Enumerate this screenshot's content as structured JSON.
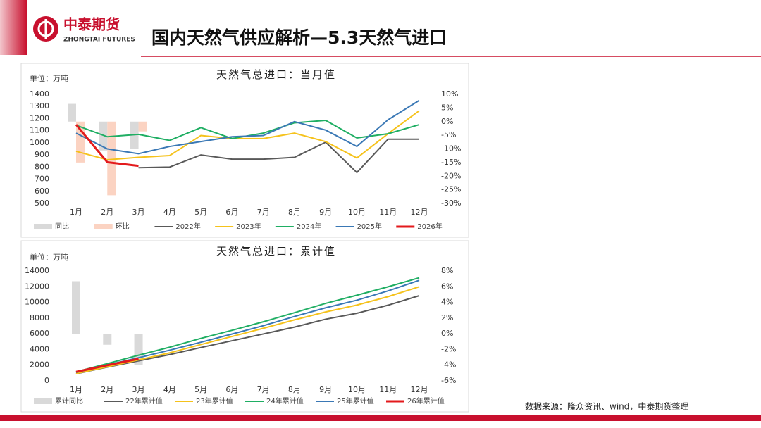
{
  "header": {
    "logo_cn": "中泰期货",
    "logo_en": "ZHONGTAI FUTURES",
    "title": "国内天然气供应解析—5.3天然气进口"
  },
  "source": "数据来源：隆众资讯、wind，中泰期货整理",
  "chart_data": [
    {
      "type": "combo",
      "title": "天然气总进口：当月值",
      "unit": "单位：万吨",
      "categories": [
        "1月",
        "2月",
        "3月",
        "4月",
        "5月",
        "6月",
        "7月",
        "8月",
        "9月",
        "10月",
        "11月",
        "12月"
      ],
      "ylim": [
        500,
        1400
      ],
      "yticks": [
        500,
        600,
        700,
        800,
        900,
        1000,
        1100,
        1200,
        1300,
        1400
      ],
      "y2lim": [
        -30,
        10
      ],
      "y2ticks": [
        {
          "value": -30,
          "label": "-30%"
        },
        {
          "value": -25,
          "label": "-25%"
        },
        {
          "value": -20,
          "label": "-20%"
        },
        {
          "value": -15,
          "label": "-15%"
        },
        {
          "value": -10,
          "label": "-10%"
        },
        {
          "value": -5,
          "label": "-5%"
        },
        {
          "value": 0,
          "label": "0%"
        },
        {
          "value": 5,
          "label": "5%"
        },
        {
          "value": 10,
          "label": "10%"
        }
      ],
      "series": [
        {
          "name": "同比",
          "type": "bar",
          "axis": "y2",
          "color": "#d9d9d9",
          "values": [
            6.5,
            -10.6,
            -10,
            null,
            null,
            null,
            null,
            null,
            null,
            null,
            null,
            null
          ]
        },
        {
          "name": "环比",
          "type": "bar",
          "axis": "y2",
          "color": "#fbd3c2",
          "values": [
            -15,
            -27,
            -3.6,
            null,
            null,
            null,
            null,
            null,
            null,
            null,
            null,
            null
          ]
        },
        {
          "name": "2022年",
          "type": "line",
          "color": "#595959",
          "values": [
            null,
            null,
            795,
            800,
            900,
            865,
            865,
            880,
            1005,
            755,
            1030,
            1030
          ]
        },
        {
          "name": "2023年",
          "type": "line",
          "color": "#f5c21b",
          "values": [
            930,
            860,
            880,
            895,
            1060,
            1035,
            1035,
            1080,
            1010,
            875,
            1075,
            1265
          ]
        },
        {
          "name": "2024年",
          "type": "line",
          "color": "#1fae63",
          "values": [
            1145,
            1050,
            1070,
            1020,
            1125,
            1035,
            1080,
            1165,
            1185,
            1040,
            1075,
            1150
          ]
        },
        {
          "name": "2025年",
          "type": "line",
          "color": "#3a78b5",
          "values": [
            1080,
            950,
            910,
            970,
            1010,
            1050,
            1060,
            1175,
            1105,
            970,
            1190,
            1350
          ]
        },
        {
          "name": "2026年",
          "type": "line",
          "color": "#e31a1c",
          "width": 3,
          "values": [
            1150,
            840,
            810,
            null,
            null,
            null,
            null,
            null,
            null,
            null,
            null,
            null
          ]
        }
      ]
    },
    {
      "type": "combo",
      "title": "天然气总进口：累计值",
      "unit": "单位：万吨",
      "categories": [
        "1月",
        "2月",
        "3月",
        "4月",
        "5月",
        "6月",
        "7月",
        "8月",
        "9月",
        "10月",
        "11月",
        "12月"
      ],
      "ylim": [
        0,
        14000
      ],
      "yticks": [
        0,
        2000,
        4000,
        6000,
        8000,
        10000,
        12000,
        14000
      ],
      "y2lim": [
        -6,
        8
      ],
      "y2ticks": [
        {
          "value": -6,
          "label": "-6%"
        },
        {
          "value": -4,
          "label": "-4%"
        },
        {
          "value": -2,
          "label": "-2%"
        },
        {
          "value": 0,
          "label": "0%"
        },
        {
          "value": 2,
          "label": "2%"
        },
        {
          "value": 4,
          "label": "4%"
        },
        {
          "value": 6,
          "label": "6%"
        },
        {
          "value": 8,
          "label": "8%"
        }
      ],
      "series": [
        {
          "name": "累计同比",
          "type": "bar",
          "axis": "y2",
          "color": "#d9d9d9",
          "values": [
            6.7,
            -1.4,
            -4,
            null,
            null,
            null,
            null,
            null,
            null,
            null,
            null,
            null
          ]
        },
        {
          "name": "22年累计值",
          "type": "line",
          "color": "#595959",
          "values": [
            900,
            1750,
            2545,
            3345,
            4245,
            5110,
            5975,
            6855,
            7860,
            8615,
            9645,
            10860
          ]
        },
        {
          "name": "23年累计值",
          "type": "line",
          "color": "#f5c21b",
          "values": [
            930,
            1790,
            2670,
            3565,
            4625,
            5660,
            6695,
            7775,
            8785,
            9660,
            10735,
            12000
          ]
        },
        {
          "name": "24年累计值",
          "type": "line",
          "color": "#1fae63",
          "values": [
            1145,
            2195,
            3265,
            4285,
            5410,
            6445,
            7525,
            8690,
            9875,
            10915,
            11990,
            13140
          ]
        },
        {
          "name": "25年累计值",
          "type": "line",
          "color": "#3a78b5",
          "values": [
            1080,
            2030,
            2940,
            3910,
            4920,
            5970,
            7030,
            8205,
            9310,
            10280,
            11470,
            12820
          ]
        },
        {
          "name": "26年累计值",
          "type": "line",
          "color": "#e31a1c",
          "width": 3,
          "values": [
            1150,
            1990,
            2800,
            null,
            null,
            null,
            null,
            null,
            null,
            null,
            null,
            null
          ]
        }
      ]
    }
  ]
}
